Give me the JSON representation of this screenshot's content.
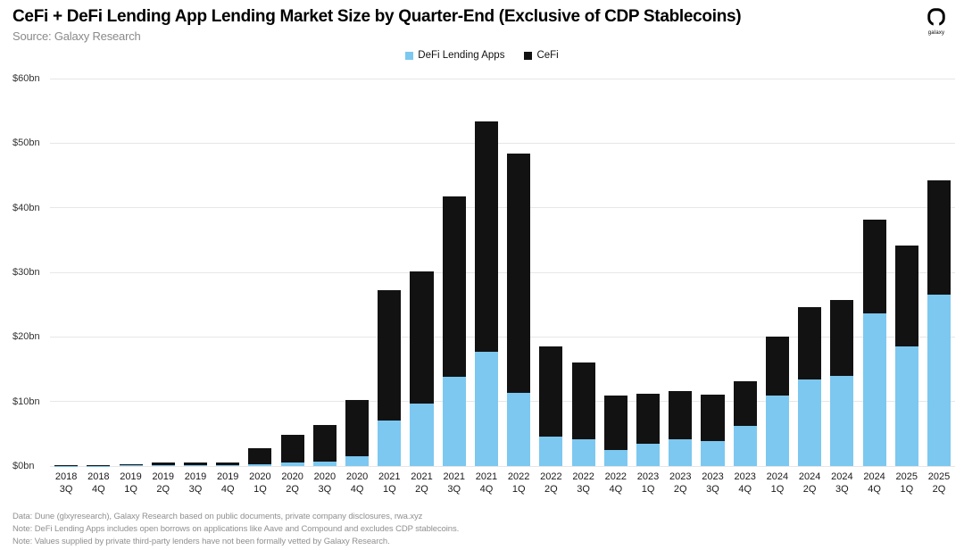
{
  "header": {
    "title": "CeFi + DeFi Lending App Lending Market Size by Quarter-End (Exclusive of CDP Stablecoins)",
    "source": "Source: Galaxy Research",
    "logo_text": "galaxy"
  },
  "legend": [
    {
      "label": "DeFi Lending Apps",
      "color": "#7cc8f0"
    },
    {
      "label": "CeFi",
      "color": "#121212"
    }
  ],
  "footnotes": [
    "Data: Dune (glxyresearch), Galaxy Research based on public documents, private company disclosures, rwa.xyz",
    "Note: DeFi Lending Apps includes open borrows on applications like Aave and Compound and excludes CDP stablecoins.",
    "Note: Values supplied by private third-party lenders have not been formally vetted by Galaxy Research."
  ],
  "chart_data": {
    "type": "bar",
    "stacked": true,
    "title": "CeFi + DeFi Lending App Lending Market Size by Quarter-End (Exclusive of CDP Stablecoins)",
    "xlabel": "",
    "ylabel": "",
    "ylim": [
      0,
      60
    ],
    "grid": true,
    "legend_position": "top-center",
    "y_ticks": [
      {
        "label": "$60bn",
        "value": 60
      },
      {
        "label": "$50bn",
        "value": 50
      },
      {
        "label": "$40bn",
        "value": 40
      },
      {
        "label": "$30bn",
        "value": 30
      },
      {
        "label": "$20bn",
        "value": 20
      },
      {
        "label": "$10bn",
        "value": 10
      },
      {
        "label": "$0bn",
        "value": 0
      }
    ],
    "categories": [
      {
        "year": "2018",
        "quarter": "3Q"
      },
      {
        "year": "2018",
        "quarter": "4Q"
      },
      {
        "year": "2019",
        "quarter": "1Q"
      },
      {
        "year": "2019",
        "quarter": "2Q"
      },
      {
        "year": "2019",
        "quarter": "3Q"
      },
      {
        "year": "2019",
        "quarter": "4Q"
      },
      {
        "year": "2020",
        "quarter": "1Q"
      },
      {
        "year": "2020",
        "quarter": "2Q"
      },
      {
        "year": "2020",
        "quarter": "3Q"
      },
      {
        "year": "2020",
        "quarter": "4Q"
      },
      {
        "year": "2021",
        "quarter": "1Q"
      },
      {
        "year": "2021",
        "quarter": "2Q"
      },
      {
        "year": "2021",
        "quarter": "3Q"
      },
      {
        "year": "2021",
        "quarter": "4Q"
      },
      {
        "year": "2022",
        "quarter": "1Q"
      },
      {
        "year": "2022",
        "quarter": "2Q"
      },
      {
        "year": "2022",
        "quarter": "3Q"
      },
      {
        "year": "2022",
        "quarter": "4Q"
      },
      {
        "year": "2023",
        "quarter": "1Q"
      },
      {
        "year": "2023",
        "quarter": "2Q"
      },
      {
        "year": "2023",
        "quarter": "3Q"
      },
      {
        "year": "2023",
        "quarter": "4Q"
      },
      {
        "year": "2024",
        "quarter": "1Q"
      },
      {
        "year": "2024",
        "quarter": "2Q"
      },
      {
        "year": "2024",
        "quarter": "3Q"
      },
      {
        "year": "2024",
        "quarter": "4Q"
      },
      {
        "year": "2025",
        "quarter": "1Q"
      },
      {
        "year": "2025",
        "quarter": "2Q"
      }
    ],
    "series": [
      {
        "name": "DeFi Lending Apps",
        "color": "#7cc8f0",
        "values": [
          0.05,
          0.05,
          0.1,
          0.15,
          0.15,
          0.2,
          0.3,
          0.5,
          0.7,
          1.5,
          7.0,
          9.7,
          13.8,
          17.7,
          11.3,
          4.5,
          4.2,
          2.5,
          3.5,
          4.2,
          3.9,
          6.2,
          10.9,
          13.4,
          13.9,
          23.6,
          18.5,
          26.5
        ]
      },
      {
        "name": "CeFi",
        "color": "#121212",
        "values": [
          0.15,
          0.15,
          0.2,
          0.35,
          0.35,
          0.4,
          2.5,
          4.3,
          5.6,
          8.8,
          20.2,
          20.5,
          28.0,
          35.6,
          37.1,
          14.0,
          11.9,
          8.4,
          7.7,
          7.4,
          7.2,
          7.0,
          9.2,
          11.2,
          11.8,
          14.5,
          15.7,
          17.7
        ]
      }
    ]
  }
}
